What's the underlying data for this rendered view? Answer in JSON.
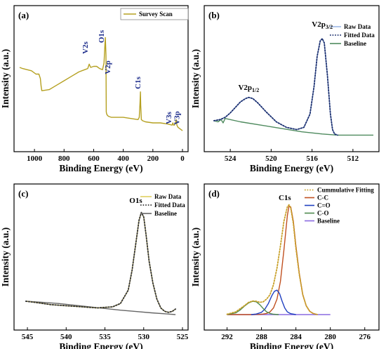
{
  "chart_data": [
    {
      "type": "line",
      "panel": "(a)",
      "xlabel": "Binding Energy  (eV)",
      "ylabel": "Intensity (a.u.)",
      "xlim": [
        1100,
        0
      ],
      "xticks": [
        1000,
        800,
        600,
        400,
        200,
        0
      ],
      "ylim": [
        0,
        100
      ],
      "legend": {
        "position": "top-right",
        "entries": [
          {
            "label": "Survey Scan",
            "color": "#b5a020",
            "style": "solid"
          }
        ]
      },
      "series": [
        {
          "name": "Survey Scan",
          "color": "#b5a020",
          "x": [
            1100,
            1080,
            1050,
            1020,
            990,
            970,
            960,
            955,
            950,
            900,
            850,
            800,
            750,
            700,
            660,
            640,
            630,
            620,
            600,
            580,
            560,
            540,
            530,
            525,
            521,
            517,
            515,
            512,
            508,
            500,
            480,
            450,
            400,
            350,
            300,
            292,
            287,
            284,
            282,
            278,
            270,
            250,
            200,
            150,
            100,
            70,
            65,
            60,
            55,
            48,
            42,
            38,
            30,
            20,
            10,
            0
          ],
          "y": [
            62,
            61,
            60,
            59,
            56,
            56,
            52,
            45,
            41,
            42,
            46,
            50,
            54,
            58,
            60,
            61,
            65,
            62,
            63,
            63,
            61,
            60,
            66,
            80,
            89,
            73,
            22,
            20,
            19,
            18,
            17,
            17,
            17,
            16,
            15,
            17,
            30,
            40,
            28,
            15,
            14,
            13,
            12,
            12,
            11,
            10,
            12,
            10,
            10,
            12,
            15,
            10,
            8,
            7,
            6,
            5
          ]
        }
      ],
      "annotations": [
        {
          "text": "V2s",
          "x": 630
        },
        {
          "text": "O1s",
          "x": 531
        },
        {
          "text": "V2p",
          "x": 517
        },
        {
          "text": "C1s",
          "x": 285
        },
        {
          "text": "V3s",
          "x": 66
        },
        {
          "text": "V3p",
          "x": 40
        }
      ]
    },
    {
      "type": "line",
      "panel": "(b)",
      "xlabel": "Binding Energy  (eV)",
      "ylabel": "Intensity (a.u.)",
      "xlim": [
        526,
        510
      ],
      "xticks": [
        524,
        520,
        516,
        512
      ],
      "ylim": [
        0,
        100
      ],
      "legend": {
        "position": "top-right",
        "entries": [
          {
            "label": "Raw Data",
            "color": "#9cb8e6",
            "style": "solid"
          },
          {
            "label": "Fitted Data",
            "color": "#1c2f6e",
            "style": "dotted"
          },
          {
            "label": "Baseline",
            "color": "#4e8a5e",
            "style": "solid"
          }
        ]
      },
      "series": [
        {
          "name": "Raw Data",
          "color": "#9cb8e6",
          "x": [
            525.6,
            525.0,
            524.5,
            524.0,
            523.5,
            523.0,
            522.5,
            522.2,
            521.8,
            521.3,
            520.5,
            519.5,
            518.5,
            517.5,
            516.8,
            516.2,
            515.8,
            515.5,
            515.2,
            515.0,
            514.8,
            514.5,
            514.2,
            514.0,
            513.8,
            513.5
          ],
          "y": [
            14,
            15,
            17,
            21,
            26,
            31,
            34,
            35,
            34,
            30,
            22,
            13,
            8,
            6,
            8,
            20,
            45,
            72,
            86,
            88,
            84,
            55,
            20,
            6,
            2,
            1
          ]
        },
        {
          "name": "Fitted Data",
          "color": "#1c2f6e",
          "x": [
            525.6,
            525.0,
            524.5,
            524.0,
            523.5,
            523.0,
            522.5,
            522.2,
            521.8,
            521.3,
            520.5,
            519.5,
            518.5,
            517.5,
            516.8,
            516.2,
            515.8,
            515.5,
            515.2,
            515.0,
            514.8,
            514.5,
            514.2,
            514.0,
            513.8,
            513.5
          ],
          "y": [
            14,
            15,
            17,
            21,
            26,
            31,
            34,
            35,
            34,
            30,
            22,
            13,
            8,
            6,
            8,
            20,
            45,
            72,
            86,
            88,
            84,
            55,
            20,
            6,
            2,
            1
          ]
        },
        {
          "name": "Baseline",
          "color": "#4e8a5e",
          "x": [
            525.6,
            525.2,
            524.9,
            524.7,
            524.5,
            523.0,
            521.0,
            519.0,
            517.0,
            515.0,
            513.5,
            510.0
          ],
          "y": [
            14,
            13,
            15,
            12,
            16,
            13,
            10,
            7,
            4,
            2,
            1,
            1
          ]
        }
      ],
      "annotations": [
        {
          "text": "V2p",
          "subscript": "1/2",
          "x": 522.2
        },
        {
          "text": "V2p",
          "subscript": "3/2",
          "x": 515.0
        }
      ]
    },
    {
      "type": "line",
      "panel": "(c)",
      "xlabel": "Binding Energy  (eV)",
      "ylabel": "Intensity (a.u.)",
      "xlim": [
        546,
        525
      ],
      "xticks": [
        545,
        540,
        535,
        530,
        525
      ],
      "ylim": [
        0,
        100
      ],
      "legend": {
        "position": "top-right",
        "entries": [
          {
            "label": "Raw Data",
            "color": "#e0d060",
            "style": "solid"
          },
          {
            "label": "Fitted Data",
            "color": "#333333",
            "style": "dotted"
          },
          {
            "label": "Baseline",
            "color": "#666666",
            "style": "solid"
          }
        ]
      },
      "series": [
        {
          "name": "Raw Data",
          "color": "#e0d060",
          "x": [
            545.2,
            544,
            542,
            540,
            538,
            536,
            534,
            533,
            532,
            531.5,
            531,
            530.6,
            530.3,
            530.0,
            529.7,
            529.3,
            528.8,
            528.3,
            527.8,
            527.3,
            526.8,
            526.3,
            525.9
          ],
          "y": [
            12,
            11,
            9,
            8,
            7,
            6,
            7,
            10,
            22,
            40,
            65,
            85,
            92,
            88,
            72,
            48,
            28,
            14,
            6,
            3,
            2,
            3,
            5
          ]
        },
        {
          "name": "Fitted Data",
          "color": "#333333",
          "x": [
            545.2,
            544,
            542,
            540,
            538,
            536,
            534,
            533,
            532,
            531.5,
            531,
            530.6,
            530.3,
            530.0,
            529.7,
            529.3,
            528.8,
            528.3,
            527.8,
            527.3,
            526.8,
            526.3,
            525.9
          ],
          "y": [
            12,
            11,
            9,
            8,
            7,
            6,
            7,
            10,
            22,
            40,
            65,
            85,
            92,
            88,
            72,
            48,
            28,
            14,
            6,
            3,
            2,
            3,
            5
          ]
        },
        {
          "name": "Baseline",
          "color": "#666666",
          "x": [
            545.2,
            543,
            541,
            539,
            537,
            535,
            533,
            531,
            529,
            527,
            525.9
          ],
          "y": [
            12,
            11,
            10,
            8.5,
            7,
            5.5,
            4,
            2.8,
            1.6,
            0.6,
            0
          ]
        }
      ],
      "annotations": [
        {
          "text": "O1s",
          "x": 530.3
        }
      ]
    },
    {
      "type": "line",
      "panel": "(d)",
      "xlabel": "Binding Energy  (eV)",
      "ylabel": "Intensity (a.u.)",
      "xlim": [
        294,
        275
      ],
      "xticks": [
        292,
        288,
        284,
        280,
        276
      ],
      "ylim": [
        0,
        100
      ],
      "legend": {
        "position": "top-right",
        "entries": [
          {
            "label": "Cummulative Fitting",
            "color": "#c8a028",
            "style": "dotted"
          },
          {
            "label": "C-C",
            "color": "#c05020",
            "style": "solid"
          },
          {
            "label": "C=O",
            "color": "#2040c0",
            "style": "solid"
          },
          {
            "label": "C-O",
            "color": "#4e8a4e",
            "style": "solid"
          },
          {
            "label": "Baseline",
            "color": "#8a6ae0",
            "style": "solid"
          }
        ]
      },
      "series": [
        {
          "name": "Cummulative Fitting",
          "color": "#c8a028",
          "x": [
            292,
            291,
            290,
            289.5,
            289,
            288.6,
            288.2,
            287.8,
            287.4,
            287.0,
            286.6,
            286.2,
            285.8,
            285.4,
            285.0,
            284.8,
            284.6,
            284.3,
            284.0,
            283.6,
            283.2,
            282.8,
            282.4,
            282.0,
            281.5
          ],
          "y": [
            0.3,
            2.5,
            8,
            11,
            12.3,
            12,
            11,
            11.5,
            14,
            18,
            27,
            42,
            62,
            84,
            97,
            99,
            96,
            82,
            60,
            36,
            18,
            8,
            3,
            1,
            0
          ]
        },
        {
          "name": "C-C",
          "color": "#c05020",
          "x": [
            292,
            291,
            290,
            289.5,
            289,
            288.6,
            288.2,
            287.8,
            287.4,
            287.0,
            286.6,
            286.2,
            285.8,
            285.4,
            285.0,
            284.8,
            284.6,
            284.3,
            284.0,
            283.6,
            283.2,
            282.8,
            282.4,
            282.0,
            281.5
          ],
          "y": [
            0,
            0,
            0,
            0,
            0,
            0.1,
            0.2,
            0.5,
            1,
            2.5,
            6,
            14,
            30,
            58,
            89,
            98,
            97,
            84,
            62,
            37,
            18,
            8,
            3,
            1,
            0
          ]
        },
        {
          "name": "C=O",
          "color": "#2040c0",
          "x": [
            289.2,
            288.6,
            288.0,
            287.6,
            287.2,
            286.8,
            286.5,
            286.2,
            285.9,
            285.6,
            285.3,
            285.0,
            284.6,
            284.0
          ],
          "y": [
            0,
            0.5,
            2,
            5,
            10,
            17,
            21,
            22,
            19,
            12,
            6,
            2.5,
            0.8,
            0
          ]
        },
        {
          "name": "C-O",
          "color": "#4e8a4e",
          "x": [
            292,
            291,
            290.5,
            290,
            289.5,
            289,
            288.6,
            288.2,
            287.8,
            287.4,
            287.0,
            286.6,
            286.0
          ],
          "y": [
            0,
            1.5,
            4,
            7.5,
            10.5,
            12,
            11.5,
            9,
            5.5,
            2.5,
            1,
            0.3,
            0
          ]
        },
        {
          "name": "Baseline",
          "color": "#8a6ae0",
          "x": [
            292,
            288,
            284,
            280
          ],
          "y": [
            0,
            0,
            0,
            0
          ]
        }
      ],
      "annotations": [
        {
          "text": "C1s",
          "x": 284.8
        }
      ]
    }
  ]
}
